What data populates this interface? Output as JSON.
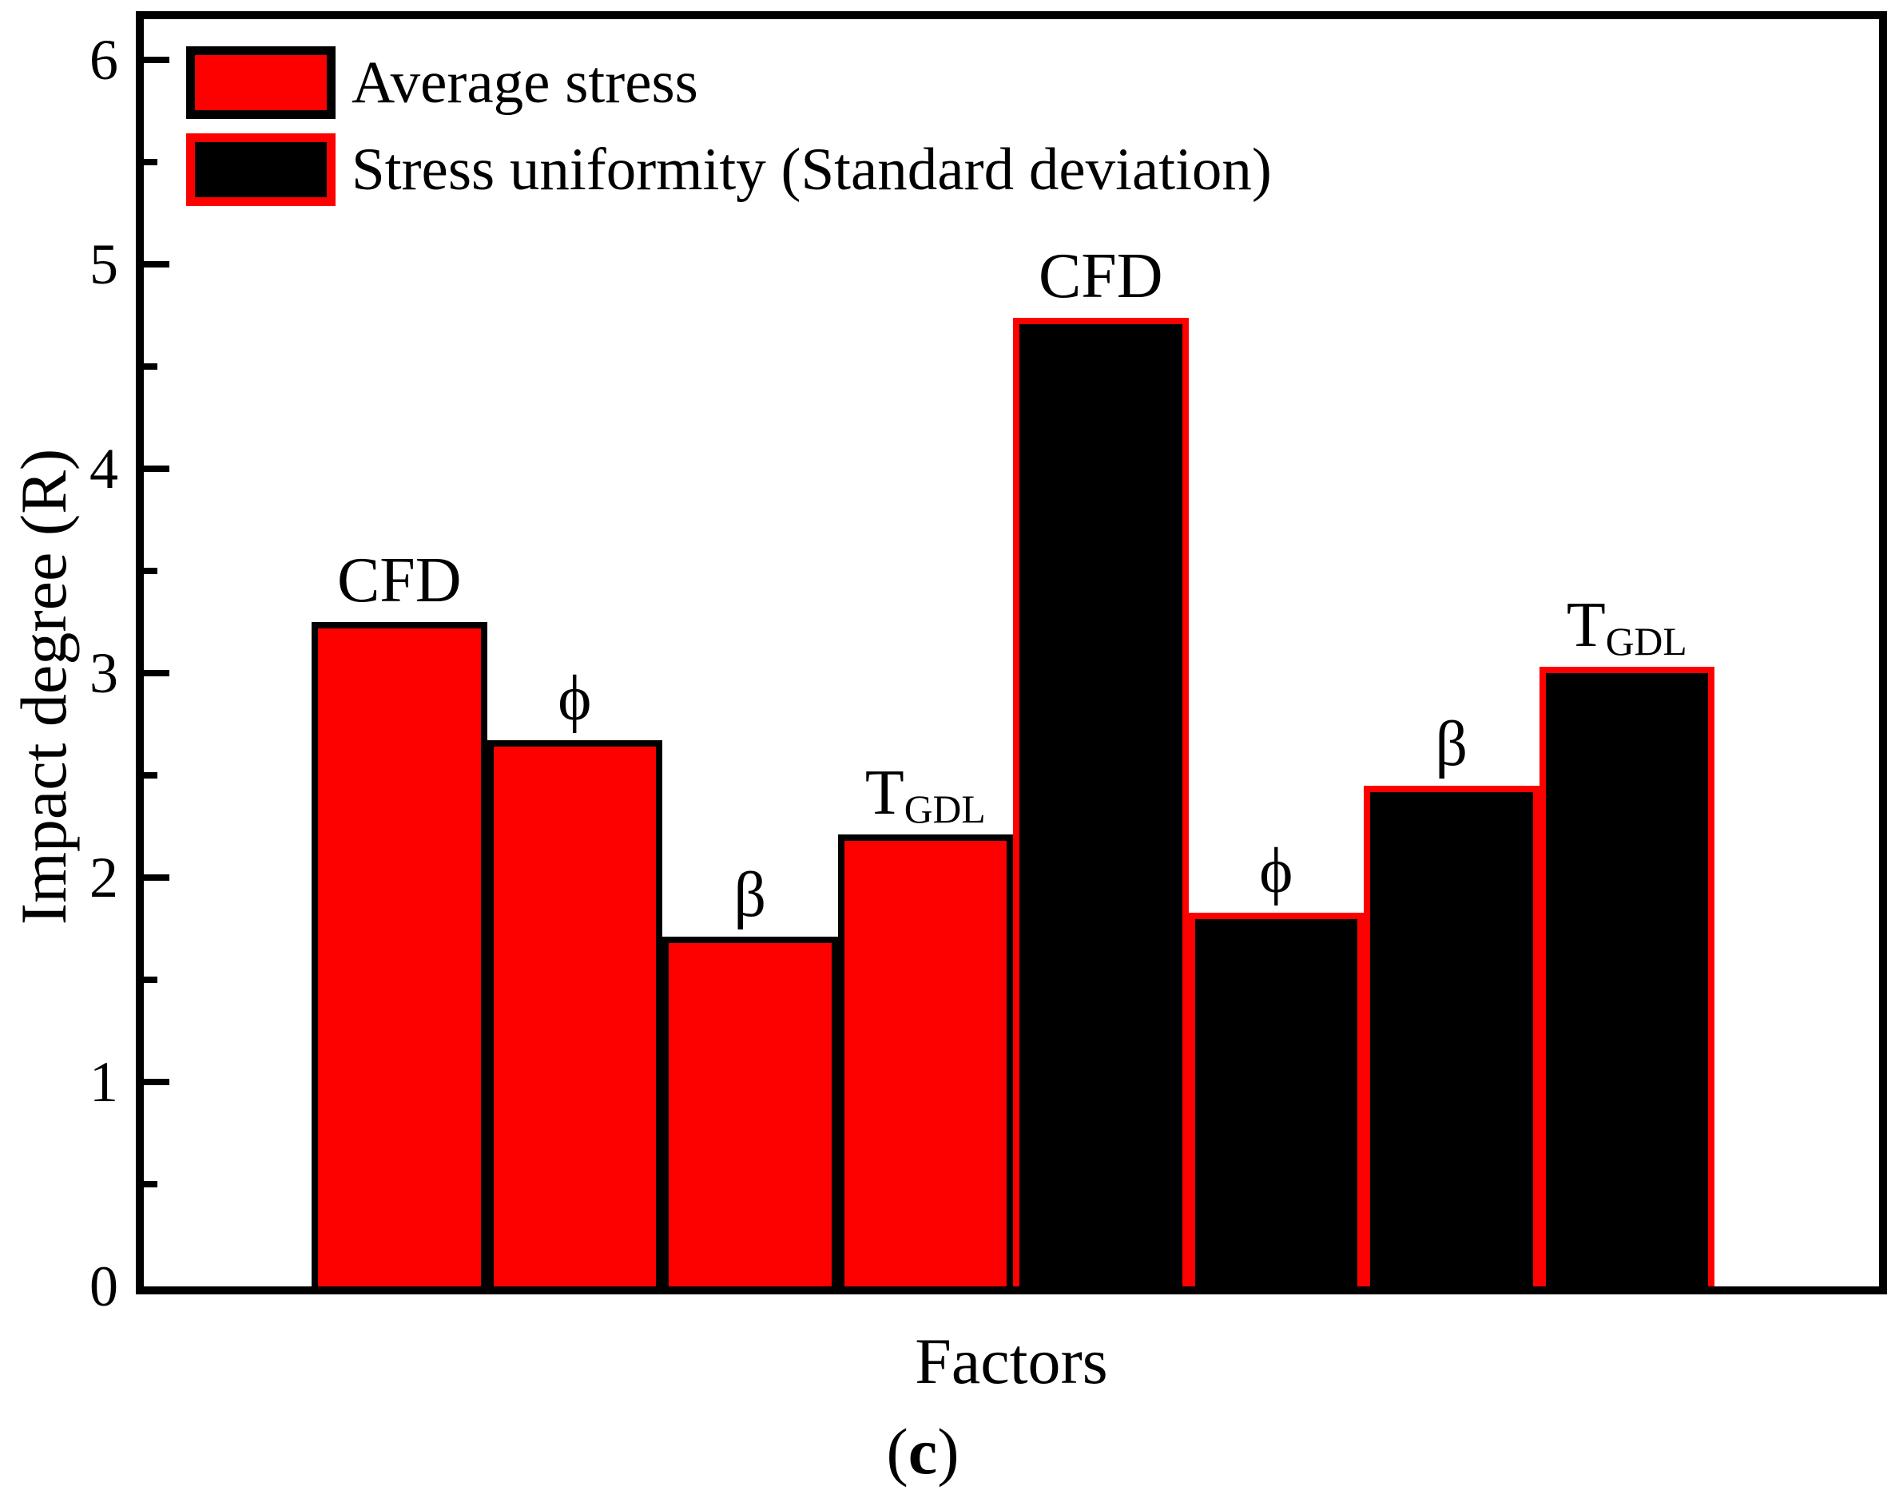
{
  "chart_data": {
    "type": "bar",
    "title": "",
    "xlabel": "Factors",
    "ylabel": "Impact degree (R)",
    "caption": {
      "open": "(",
      "letter": "c",
      "close": ")"
    },
    "ylim": [
      0,
      6.2
    ],
    "ytick_major": [
      0,
      1,
      2,
      3,
      4,
      5,
      6
    ],
    "ytick_minor": [
      0.5,
      1.5,
      2.5,
      3.5,
      4.5,
      5.5
    ],
    "grid": false,
    "legend_position": "top-left",
    "categories": [
      {
        "main": "CFD",
        "sub": ""
      },
      {
        "main": "ϕ",
        "sub": ""
      },
      {
        "main": "β",
        "sub": ""
      },
      {
        "main": "T",
        "sub": "GDL"
      }
    ],
    "series": [
      {
        "name": "Average stress",
        "fill": "#fd0000",
        "border": "#000000",
        "values": [
          3.25,
          2.67,
          1.71,
          2.21
        ]
      },
      {
        "name": "Stress uniformity (Standard deviation)",
        "fill": "#000000",
        "border": "#fd0000",
        "values": [
          4.74,
          1.83,
          2.45,
          3.03
        ]
      }
    ]
  },
  "colors": {
    "red": "#fd0000",
    "black": "#000000",
    "background": "#ffffff"
  }
}
